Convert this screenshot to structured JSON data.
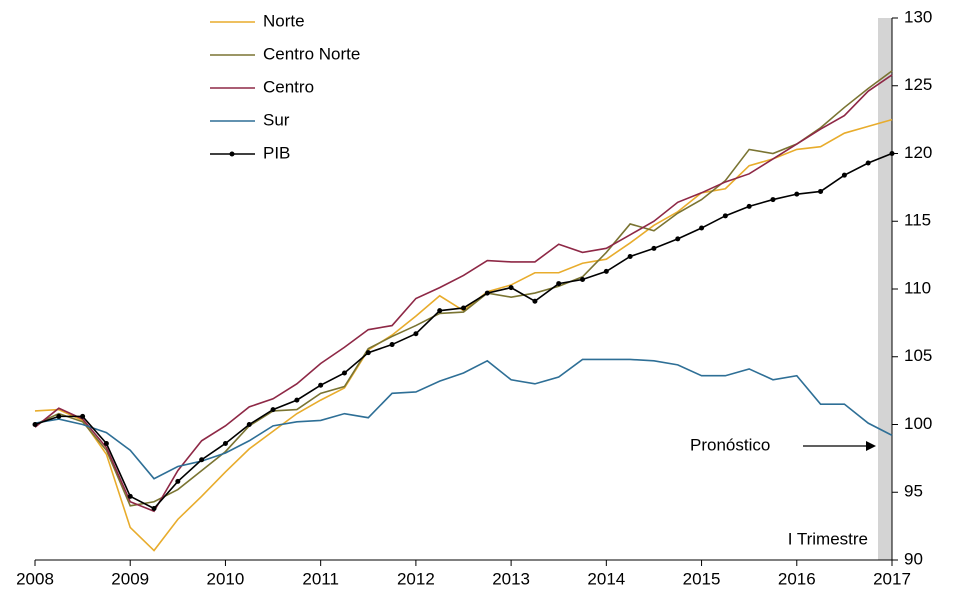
{
  "chart_data": {
    "type": "line",
    "x": [
      2008,
      2008.25,
      2008.5,
      2008.75,
      2009,
      2009.25,
      2009.5,
      2009.75,
      2010,
      2010.25,
      2010.5,
      2010.75,
      2011,
      2011.25,
      2011.5,
      2011.75,
      2012,
      2012.25,
      2012.5,
      2012.75,
      2013,
      2013.25,
      2013.5,
      2013.75,
      2014,
      2014.25,
      2014.5,
      2014.75,
      2015,
      2015.25,
      2015.5,
      2015.75,
      2016,
      2016.25,
      2016.5,
      2016.75,
      2017
    ],
    "series": [
      {
        "name": "Norte",
        "color": "#e8ac2c",
        "values": [
          101.0,
          101.1,
          100.3,
          97.8,
          92.4,
          90.7,
          93.0,
          94.7,
          96.5,
          98.2,
          99.5,
          100.8,
          101.8,
          102.7,
          105.5,
          106.6,
          108.0,
          109.5,
          108.4,
          109.8,
          110.3,
          111.2,
          111.2,
          111.9,
          112.2,
          113.4,
          114.7,
          115.7,
          117.1,
          117.4,
          119.1,
          119.6,
          120.3,
          120.5,
          121.5,
          122.0,
          122.5
        ]
      },
      {
        "name": "Centro Norte",
        "color": "#7a7432",
        "values": [
          100.0,
          100.8,
          100.2,
          98.1,
          94.0,
          94.3,
          95.2,
          96.6,
          98.0,
          99.9,
          101.0,
          101.1,
          102.3,
          102.8,
          105.6,
          106.5,
          107.3,
          108.2,
          108.3,
          109.7,
          109.4,
          109.7,
          110.2,
          110.9,
          112.7,
          114.8,
          114.3,
          115.6,
          116.6,
          118.0,
          120.3,
          120.0,
          120.7,
          121.9,
          123.4,
          124.8,
          126.1
        ]
      },
      {
        "name": "Centro",
        "color": "#8e2846",
        "values": [
          99.8,
          101.2,
          100.4,
          98.3,
          94.3,
          93.6,
          96.6,
          98.8,
          99.9,
          101.3,
          101.9,
          103.0,
          104.5,
          105.7,
          107.0,
          107.3,
          109.3,
          110.1,
          111.0,
          112.1,
          112.0,
          112.0,
          113.3,
          112.7,
          113.0,
          114.0,
          115.0,
          116.4,
          117.1,
          117.9,
          118.5,
          119.6,
          120.7,
          121.8,
          122.8,
          124.6,
          125.8
        ]
      },
      {
        "name": "Sur",
        "color": "#2e6f96",
        "values": [
          100.1,
          100.4,
          100.0,
          99.4,
          98.1,
          96.0,
          96.9,
          97.3,
          97.9,
          98.8,
          99.9,
          100.2,
          100.3,
          100.8,
          100.5,
          102.3,
          102.4,
          103.2,
          103.8,
          104.7,
          103.3,
          103.0,
          103.5,
          104.8,
          104.8,
          104.8,
          104.7,
          104.4,
          103.6,
          103.6,
          104.1,
          103.3,
          103.6,
          101.5,
          101.5,
          100.1,
          99.2
        ]
      },
      {
        "name": "PIB",
        "color": "#000000",
        "marker": true,
        "values": [
          100.0,
          100.6,
          100.6,
          98.6,
          94.7,
          93.8,
          95.8,
          97.4,
          98.6,
          100.0,
          101.1,
          101.8,
          102.9,
          103.8,
          105.3,
          105.9,
          106.7,
          108.4,
          108.6,
          109.7,
          110.1,
          109.1,
          110.4,
          110.7,
          111.3,
          112.4,
          113.0,
          113.7,
          114.5,
          115.4,
          116.1,
          116.6,
          117.0,
          117.2,
          118.4,
          119.3,
          120.0
        ]
      }
    ],
    "xlim": [
      2008,
      2017
    ],
    "xticks": [
      2008,
      2009,
      2010,
      2011,
      2012,
      2013,
      2014,
      2015,
      2016,
      2017
    ],
    "ylim": [
      90,
      130
    ],
    "yticks": [
      90,
      95,
      100,
      105,
      110,
      115,
      120,
      125,
      130
    ],
    "y_axis_side": "right",
    "grid": false,
    "legend": "top-left",
    "annotations": [
      "Pronóstico",
      "I Trimestre"
    ]
  }
}
